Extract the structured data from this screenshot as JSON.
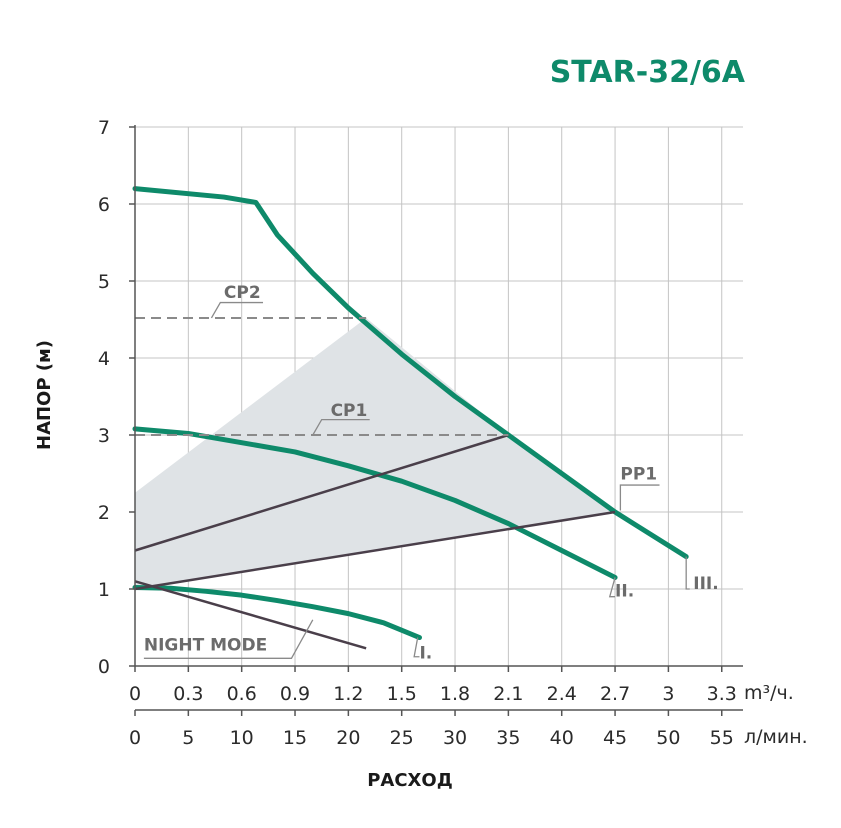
{
  "chart_data": {
    "type": "line",
    "title": "STAR-32/6A",
    "ylabel": "НАПОР (м)",
    "xlabel": "РАСХОД",
    "x_unit_primary": "m³/ч.",
    "x_unit_secondary": "л/мин.",
    "xlim": [
      0,
      3.4
    ],
    "ylim": [
      0,
      7
    ],
    "grid": true,
    "x_ticks": [
      "0",
      "0.3",
      "0.6",
      "0.9",
      "1.2",
      "1.5",
      "1.8",
      "2.1",
      "2.4",
      "2.7",
      "3",
      "3.3"
    ],
    "x_ticks_secondary": [
      "0",
      "5",
      "10",
      "15",
      "20",
      "25",
      "30",
      "35",
      "40",
      "45",
      "50",
      "55"
    ],
    "y_ticks": [
      "0",
      "1",
      "2",
      "3",
      "4",
      "5",
      "6",
      "7"
    ],
    "colors": {
      "curve": "#0e8a6a",
      "regulation_line": "#4a3f4a",
      "area": "#dfe3e6",
      "constant_line": "#8a8a8a"
    },
    "series": [
      {
        "name": "III.",
        "style": "speed-curve",
        "x": [
          0,
          0.5,
          0.68,
          0.8,
          1.0,
          1.2,
          1.5,
          1.8,
          2.1,
          2.4,
          2.7,
          3.1
        ],
        "y": [
          6.2,
          6.09,
          6.02,
          5.6,
          5.1,
          4.65,
          4.05,
          3.5,
          3.0,
          2.5,
          2.0,
          1.42
        ]
      },
      {
        "name": "II.",
        "style": "speed-curve",
        "x": [
          0,
          0.3,
          0.6,
          0.9,
          1.2,
          1.5,
          1.8,
          2.1,
          2.4,
          2.7
        ],
        "y": [
          3.08,
          3.02,
          2.9,
          2.78,
          2.6,
          2.4,
          2.15,
          1.85,
          1.5,
          1.15
        ]
      },
      {
        "name": "I.",
        "style": "speed-curve",
        "x": [
          0,
          0.2,
          0.4,
          0.6,
          0.8,
          1.0,
          1.2,
          1.4,
          1.6
        ],
        "y": [
          1.02,
          1.01,
          0.97,
          0.92,
          0.85,
          0.77,
          0.68,
          0.56,
          0.37
        ]
      },
      {
        "name": "NIGHT MODE",
        "style": "regulation-line",
        "x": [
          0,
          1.3
        ],
        "y": [
          1.1,
          0.23
        ]
      },
      {
        "name": "PP1",
        "style": "regulation-line",
        "x": [
          0,
          2.7
        ],
        "y": [
          1.0,
          2.0
        ]
      },
      {
        "style": "regulation-line",
        "x": [
          0,
          2.1
        ],
        "y": [
          1.5,
          3.0
        ]
      },
      {
        "name": "CP2",
        "style": "constant-pressure",
        "x": [
          0,
          1.3
        ],
        "y": [
          4.52,
          4.52
        ]
      },
      {
        "name": "CP1",
        "style": "constant-pressure",
        "x": [
          0,
          2.1
        ],
        "y": [
          3.0,
          3.0
        ]
      }
    ],
    "regulation_area": {
      "x": [
        0,
        1.3,
        2.1,
        2.7,
        0
      ],
      "y": [
        2.25,
        4.52,
        3.0,
        2.0,
        1.0
      ]
    },
    "labels": [
      {
        "text": "III.",
        "x": 3.14,
        "y": 1.0
      },
      {
        "text": "II.",
        "x": 2.7,
        "y": 0.9
      },
      {
        "text": "I.",
        "x": 1.6,
        "y": 0.1
      },
      {
        "text": "NIGHT MODE",
        "x": 0.05,
        "y": 0.2
      },
      {
        "text": "PP1",
        "x": 2.73,
        "y": 2.42
      },
      {
        "text": "CP1",
        "x": 1.1,
        "y": 3.25
      },
      {
        "text": "CP2",
        "x": 0.5,
        "y": 4.78
      }
    ]
  }
}
